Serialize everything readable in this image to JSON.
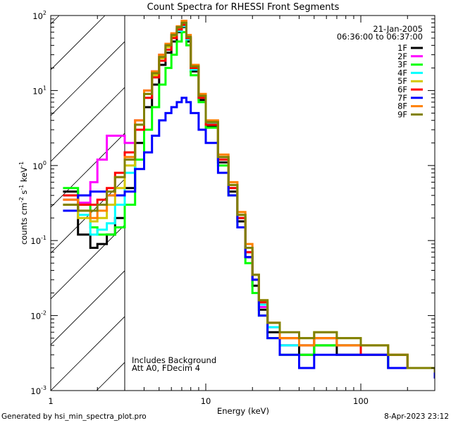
{
  "chart_data": {
    "type": "line",
    "title": "Count Spectra for RHESSI Front Segments",
    "xlabel": "Energy (keV)",
    "ylabel": "counts cm-2 s-1 keV-1",
    "ylabel_parts": {
      "base": "counts cm",
      "e1": "-2",
      "mid1": " s",
      "e2": "-1",
      "mid2": " keV",
      "e3": "-1"
    },
    "xscale": "log",
    "yscale": "log",
    "xlim": [
      1,
      300
    ],
    "ylim": [
      0.001,
      100
    ],
    "xtick_labels": [
      "1",
      "10",
      "100"
    ],
    "ytick_labels": [
      {
        "base": "10",
        "exp": "-3"
      },
      {
        "base": "10",
        "exp": "-2"
      },
      {
        "base": "10",
        "exp": "-1"
      },
      {
        "base": "10",
        "exp": "0"
      },
      {
        "base": "10",
        "exp": "1"
      },
      {
        "base": "10",
        "exp": "2"
      }
    ],
    "shaded_region_keV": [
      1,
      3
    ],
    "legend_position": "top-right",
    "date": "21-Jan-2005",
    "time_range": "06:36:00 to 06:37:00",
    "annotations": [
      "Includes Background",
      "Att A0, FDecim 4"
    ],
    "energies": [
      1.2,
      1.5,
      1.8,
      2.0,
      2.3,
      2.6,
      3.0,
      3.5,
      4.0,
      4.5,
      5.0,
      5.5,
      6.0,
      6.5,
      7.0,
      7.5,
      8.0,
      9.0,
      10,
      12,
      14,
      16,
      18,
      20,
      22,
      25,
      30,
      40,
      50,
      70,
      100,
      150,
      200,
      300
    ],
    "series": [
      {
        "name": "1F",
        "color": "#000000",
        "values": [
          0.45,
          0.12,
          0.08,
          0.09,
          0.12,
          0.2,
          0.5,
          2.0,
          6,
          12,
          22,
          32,
          45,
          60,
          70,
          45,
          18,
          7.5,
          3.3,
          1.1,
          0.45,
          0.18,
          0.06,
          0.025,
          0.012,
          0.006,
          0.004,
          0.003,
          0.004,
          0.003,
          0.003,
          0.002,
          0.002,
          0.0015
        ]
      },
      {
        "name": "2F",
        "color": "#ff00ff",
        "values": [
          0.35,
          0.32,
          0.6,
          1.2,
          2.5,
          2.5,
          2.0,
          4,
          10,
          18,
          30,
          40,
          55,
          70,
          80,
          50,
          20,
          8,
          3.5,
          1.2,
          0.5,
          0.2,
          0.07,
          0.03,
          0.013,
          0.007,
          0.004,
          0.004,
          0.005,
          0.004,
          0.003,
          0.003,
          0.002,
          0.0015
        ]
      },
      {
        "name": "3F",
        "color": "#00ff00",
        "values": [
          0.5,
          0.3,
          0.15,
          0.12,
          0.12,
          0.15,
          0.3,
          1.2,
          3,
          6,
          12,
          20,
          30,
          45,
          60,
          40,
          16,
          7,
          3.2,
          1.0,
          0.4,
          0.15,
          0.05,
          0.02,
          0.01,
          0.005,
          0.003,
          0.003,
          0.004,
          0.004,
          0.003,
          0.002,
          0.002,
          0.0015
        ]
      },
      {
        "name": "4F",
        "color": "#00ffff",
        "values": [
          0.4,
          0.22,
          0.12,
          0.14,
          0.17,
          0.3,
          0.8,
          3,
          8,
          15,
          25,
          35,
          50,
          62,
          72,
          48,
          19,
          8,
          3.6,
          1.2,
          0.5,
          0.2,
          0.07,
          0.03,
          0.014,
          0.007,
          0.004,
          0.004,
          0.005,
          0.004,
          0.003,
          0.003,
          0.002,
          0.0018
        ]
      },
      {
        "name": "5F",
        "color": "#d4c800",
        "values": [
          0.3,
          0.2,
          0.18,
          0.2,
          0.3,
          0.5,
          1.0,
          3.5,
          9,
          16,
          27,
          38,
          52,
          66,
          76,
          50,
          20,
          8.5,
          3.8,
          1.3,
          0.55,
          0.22,
          0.08,
          0.035,
          0.016,
          0.008,
          0.005,
          0.005,
          0.006,
          0.005,
          0.004,
          0.003,
          0.002,
          0.0018
        ]
      },
      {
        "name": "6F",
        "color": "#ff0000",
        "values": [
          0.4,
          0.3,
          0.3,
          0.35,
          0.5,
          0.8,
          1.5,
          3,
          8,
          15,
          25,
          35,
          50,
          65,
          75,
          50,
          20,
          8,
          3.5,
          1.2,
          0.5,
          0.2,
          0.07,
          0.03,
          0.015,
          0.008,
          0.005,
          0.004,
          0.005,
          0.004,
          0.003,
          0.003,
          0.002,
          0.0015
        ]
      },
      {
        "name": "7F",
        "color": "#0000ff",
        "values": [
          0.25,
          0.4,
          0.45,
          0.45,
          0.4,
          0.4,
          0.45,
          0.9,
          1.5,
          2.5,
          4,
          5,
          6,
          7,
          8,
          7,
          5,
          3,
          2,
          0.8,
          0.4,
          0.15,
          0.06,
          0.03,
          0.01,
          0.005,
          0.003,
          0.002,
          0.003,
          0.003,
          0.003,
          0.002,
          0.002,
          0.0015
        ]
      },
      {
        "name": "8F",
        "color": "#ff8000",
        "values": [
          0.35,
          0.25,
          0.2,
          0.25,
          0.4,
          0.7,
          1.3,
          4,
          10,
          18,
          30,
          42,
          58,
          72,
          85,
          55,
          22,
          9,
          4,
          1.4,
          0.6,
          0.24,
          0.09,
          0.035,
          0.016,
          0.008,
          0.005,
          0.004,
          0.005,
          0.004,
          0.004,
          0.003,
          0.002,
          0.0018
        ]
      },
      {
        "name": "9F",
        "color": "#808000",
        "values": [
          0.3,
          0.25,
          0.25,
          0.3,
          0.45,
          0.7,
          1.2,
          3.5,
          9,
          17,
          28,
          40,
          55,
          70,
          80,
          52,
          21,
          8.5,
          3.8,
          1.3,
          0.55,
          0.22,
          0.08,
          0.035,
          0.016,
          0.008,
          0.006,
          0.005,
          0.006,
          0.005,
          0.004,
          0.003,
          0.002,
          0.0018
        ]
      }
    ]
  },
  "footer": {
    "generated_by": "Generated by hsi_min_spectra_plot.pro",
    "timestamp": "8-Apr-2023 23:12"
  }
}
